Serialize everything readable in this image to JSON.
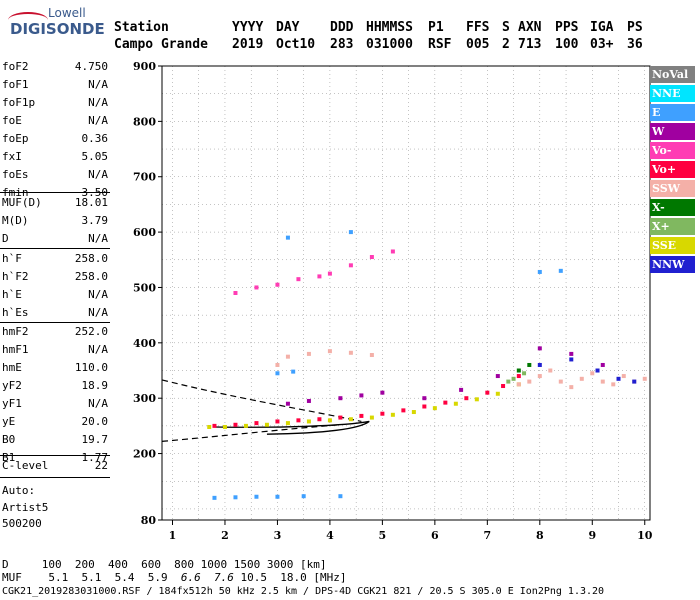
{
  "logo": {
    "line1": "Lowell",
    "line2": "DIGISONDE"
  },
  "header": {
    "labels": [
      "Station",
      "YYYY",
      "DAY",
      "DDD",
      "HHMMSS",
      "P1",
      "FFS",
      "S",
      "AXN",
      "PPS",
      "IGA",
      "PS"
    ],
    "values": [
      "Campo Grande",
      "2019",
      "Oct10",
      "283",
      "031000",
      "RSF",
      "005",
      "2",
      "713",
      "100",
      "03+",
      "36"
    ]
  },
  "params": {
    "group1": [
      {
        "name": "foF2",
        "value": "4.750"
      },
      {
        "name": "foF1",
        "value": "N/A"
      },
      {
        "name": "foF1p",
        "value": "N/A"
      },
      {
        "name": "foE",
        "value": "N/A"
      },
      {
        "name": "foEp",
        "value": "0.36"
      },
      {
        "name": "fxI",
        "value": "5.05"
      },
      {
        "name": "foEs",
        "value": "N/A"
      },
      {
        "name": "fmin",
        "value": "3.50"
      }
    ],
    "group2": [
      {
        "name": "MUF(D)",
        "value": "18.01"
      },
      {
        "name": "M(D)",
        "value": "3.79"
      },
      {
        "name": "D",
        "value": "N/A"
      }
    ],
    "group3": [
      {
        "name": "h`F",
        "value": "258.0"
      },
      {
        "name": "h`F2",
        "value": "258.0"
      },
      {
        "name": "h`E",
        "value": "N/A"
      },
      {
        "name": "h`Es",
        "value": "N/A"
      }
    ],
    "group4": [
      {
        "name": "hmF2",
        "value": "252.0"
      },
      {
        "name": "hmF1",
        "value": "N/A"
      },
      {
        "name": "hmE",
        "value": "110.0"
      },
      {
        "name": "yF2",
        "value": "18.9"
      },
      {
        "name": "yF1",
        "value": "N/A"
      },
      {
        "name": "yE",
        "value": "20.0"
      },
      {
        "name": "B0",
        "value": "19.7"
      },
      {
        "name": "B1",
        "value": "1.77"
      }
    ],
    "group5": [
      {
        "name": "C-level",
        "value": "22"
      }
    ],
    "auto": [
      "Auto:",
      "Artist5",
      "500200"
    ]
  },
  "legend": [
    {
      "label": "NoVal",
      "color": "#808080"
    },
    {
      "label": "NNE",
      "color": "#00e5ff"
    },
    {
      "label": "E",
      "color": "#3fa0ff"
    },
    {
      "label": "W",
      "color": "#a000a0"
    },
    {
      "label": "Vo-",
      "color": "#ff3cb4"
    },
    {
      "label": "Vo+",
      "color": "#ff0040"
    },
    {
      "label": "SSW",
      "color": "#f4b0a8"
    },
    {
      "label": "X-",
      "color": "#007800"
    },
    {
      "label": "X+",
      "color": "#80b860"
    },
    {
      "label": "SSE",
      "color": "#d8d800"
    },
    {
      "label": "NNW",
      "color": "#2020d0"
    }
  ],
  "bottom": {
    "d_row": "D     100  200  400  600  800 1000 1500 3000 [km]",
    "muf_label": "MUF",
    "muf_vals": [
      "5.1",
      "5.1",
      "5.4",
      "5.9",
      "6.6",
      "7.6",
      "10.5",
      "18.0"
    ],
    "muf_unit": "[MHz]",
    "footer": "CGK21_2019283031000.RSF / 184fx512h 50 kHz 2.5 km / DPS-4D CGK21 821 / 20.5 S 305.0 E Ion2Png 1.3.20"
  },
  "chart_data": {
    "type": "scatter",
    "xlim": [
      0.8,
      10.1
    ],
    "ylim": [
      80,
      900
    ],
    "x_ticks": [
      1,
      2,
      3,
      4,
      5,
      6,
      7,
      8,
      9,
      10
    ],
    "y_ticks": [
      80,
      200,
      300,
      400,
      500,
      600,
      700,
      800,
      900
    ],
    "grid": true,
    "legend_position": "right",
    "series": [
      {
        "name": "Vo+",
        "color": "#ff0040",
        "points": [
          [
            1.8,
            250
          ],
          [
            2.2,
            252
          ],
          [
            2.6,
            255
          ],
          [
            3.0,
            258
          ],
          [
            3.4,
            260
          ],
          [
            3.8,
            262
          ],
          [
            4.2,
            265
          ],
          [
            4.6,
            268
          ],
          [
            5.0,
            272
          ],
          [
            5.4,
            278
          ],
          [
            5.8,
            285
          ],
          [
            6.2,
            292
          ],
          [
            6.6,
            300
          ],
          [
            7.0,
            310
          ],
          [
            7.3,
            322
          ],
          [
            7.6,
            340
          ]
        ]
      },
      {
        "name": "SSE",
        "color": "#d8d800",
        "points": [
          [
            1.7,
            248
          ],
          [
            2.0,
            248
          ],
          [
            2.4,
            250
          ],
          [
            2.8,
            252
          ],
          [
            3.2,
            255
          ],
          [
            3.6,
            258
          ],
          [
            4.0,
            260
          ],
          [
            4.4,
            262
          ],
          [
            4.8,
            265
          ],
          [
            5.2,
            270
          ],
          [
            5.6,
            275
          ],
          [
            6.0,
            282
          ],
          [
            6.4,
            290
          ],
          [
            6.8,
            298
          ],
          [
            7.2,
            308
          ],
          [
            7.6,
            325
          ]
        ]
      },
      {
        "name": "SSW",
        "color": "#f4b0a8",
        "points": [
          [
            7.6,
            325
          ],
          [
            7.8,
            330
          ],
          [
            8.0,
            340
          ],
          [
            8.2,
            350
          ],
          [
            8.4,
            330
          ],
          [
            8.6,
            320
          ],
          [
            8.8,
            335
          ],
          [
            9.0,
            345
          ],
          [
            9.2,
            330
          ],
          [
            9.4,
            325
          ],
          [
            9.6,
            340
          ],
          [
            9.8,
            330
          ],
          [
            10.0,
            335
          ],
          [
            3.6,
            380
          ],
          [
            4.0,
            385
          ],
          [
            4.4,
            382
          ],
          [
            4.8,
            378
          ],
          [
            3.0,
            360
          ],
          [
            3.2,
            375
          ]
        ]
      },
      {
        "name": "W",
        "color": "#a000a0",
        "points": [
          [
            3.2,
            290
          ],
          [
            3.6,
            295
          ],
          [
            4.2,
            300
          ],
          [
            4.6,
            305
          ],
          [
            5.0,
            310
          ],
          [
            5.8,
            300
          ],
          [
            6.5,
            315
          ],
          [
            7.2,
            340
          ],
          [
            8.0,
            390
          ],
          [
            8.6,
            380
          ],
          [
            9.2,
            360
          ]
        ]
      },
      {
        "name": "NNW",
        "color": "#2020d0",
        "points": [
          [
            8.0,
            360
          ],
          [
            8.6,
            370
          ],
          [
            9.1,
            350
          ],
          [
            9.5,
            335
          ],
          [
            9.8,
            330
          ]
        ]
      },
      {
        "name": "E",
        "color": "#3fa0ff",
        "points": [
          [
            1.8,
            120
          ],
          [
            2.2,
            121
          ],
          [
            2.6,
            122
          ],
          [
            3.0,
            122
          ],
          [
            3.5,
            123
          ],
          [
            4.2,
            123
          ],
          [
            3.2,
            590
          ],
          [
            4.4,
            600
          ],
          [
            8.0,
            528
          ],
          [
            8.4,
            530
          ],
          [
            3.0,
            345
          ],
          [
            3.3,
            348
          ]
        ]
      },
      {
        "name": "X-",
        "color": "#007800",
        "points": [
          [
            7.6,
            350
          ],
          [
            7.8,
            360
          ]
        ]
      },
      {
        "name": "X+",
        "color": "#80b860",
        "points": [
          [
            7.4,
            330
          ],
          [
            7.5,
            335
          ],
          [
            7.7,
            345
          ]
        ]
      },
      {
        "name": "Vo-",
        "color": "#ff3cb4",
        "points": [
          [
            2.2,
            490
          ],
          [
            2.6,
            500
          ],
          [
            3.0,
            505
          ],
          [
            3.4,
            515
          ],
          [
            3.8,
            520
          ],
          [
            4.0,
            525
          ],
          [
            4.4,
            540
          ],
          [
            4.8,
            555
          ],
          [
            5.2,
            565
          ]
        ]
      }
    ]
  }
}
